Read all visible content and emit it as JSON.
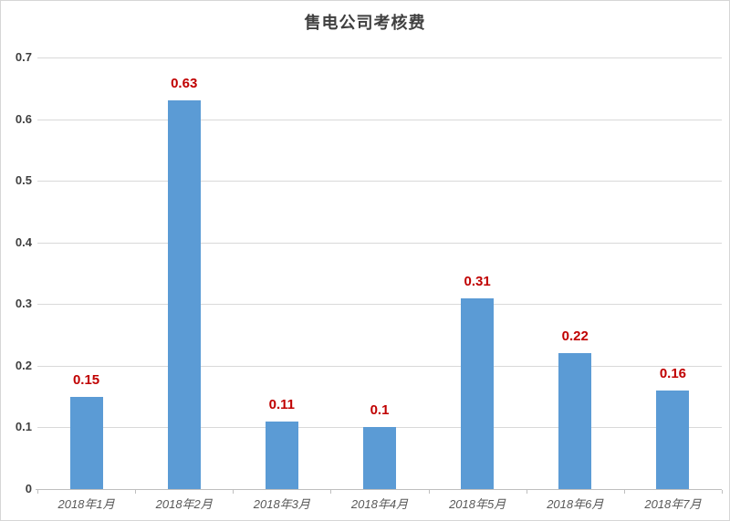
{
  "chart_data": {
    "type": "bar",
    "title": "售电公司考核费",
    "categories": [
      "2018年1月",
      "2018年2月",
      "2018年3月",
      "2018年4月",
      "2018年5月",
      "2018年6月",
      "2018年7月"
    ],
    "values": [
      0.15,
      0.63,
      0.11,
      0.1,
      0.31,
      0.22,
      0.16
    ],
    "data_labels": [
      "0.15",
      "0.63",
      "0.11",
      "0.1",
      "0.31",
      "0.22",
      "0.16"
    ],
    "xlabel": "",
    "ylabel": "",
    "ylim": [
      0,
      0.7
    ],
    "ytick_step": 0.1,
    "ytick_labels": [
      "0",
      "0.1",
      "0.2",
      "0.3",
      "0.4",
      "0.5",
      "0.6",
      "0.7"
    ],
    "grid": true,
    "legend": "none",
    "colors": {
      "bar": "#5b9bd5",
      "data_label": "#c00000",
      "title": "#404040",
      "gridline": "#d9d9d9",
      "axis_line": "#bfbfbf",
      "ytick_label": "#3f3f3f",
      "xtick_label": "#595959",
      "background": "#ffffff",
      "border": "#d6d6d6"
    }
  }
}
